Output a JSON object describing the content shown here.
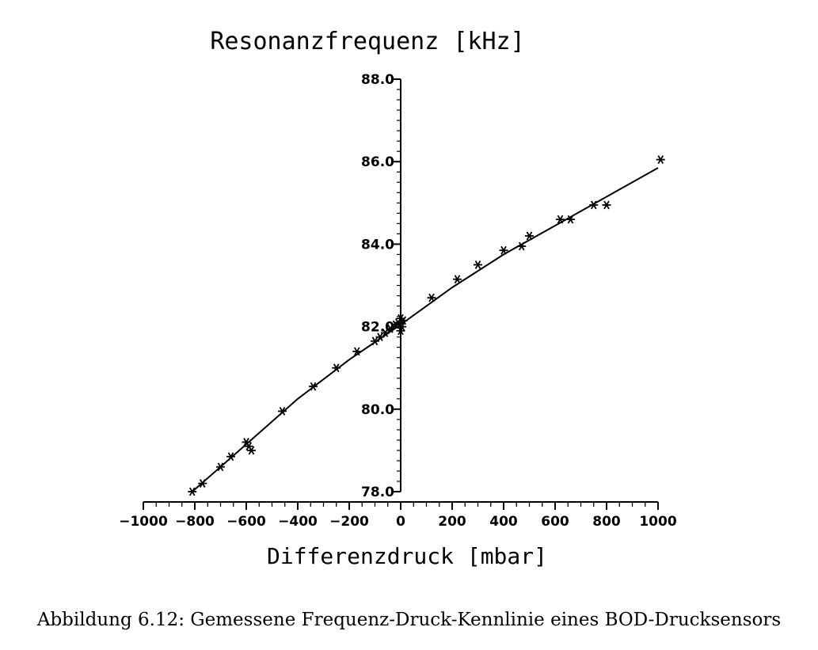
{
  "caption": "Abbildung 6.12: Gemessene Frequenz-Druck-Kennlinie eines BOD-Drucksensors",
  "chart_data": {
    "type": "scatter",
    "title": "",
    "xlabel": "Differenzdruck [mbar]",
    "ylabel": "Resonanzfrequenz [kHz]",
    "xlim": [
      -1000,
      1000
    ],
    "ylim": [
      78.0,
      88.0
    ],
    "x_ticks": [
      -1000,
      -800,
      -600,
      -400,
      -200,
      0,
      200,
      400,
      600,
      800,
      1000
    ],
    "x_tick_labels": [
      "−1000",
      "−800",
      "−600",
      "−400",
      "−200",
      "0",
      "200",
      "400",
      "600",
      "800",
      "1000"
    ],
    "y_ticks": [
      78.0,
      80.0,
      82.0,
      84.0,
      86.0,
      88.0
    ],
    "y_tick_labels": [
      "78.0",
      "80.0",
      "82.0",
      "84.0",
      "86.0",
      "88.0"
    ],
    "x_axis_position": "bottom",
    "y_axis_position": "x=0",
    "grid": false,
    "legend": "none",
    "color": "#000000",
    "series": [
      {
        "type": "scatter",
        "marker": "asterisk",
        "x": [
          -810,
          -770,
          -700,
          -660,
          -600,
          -590,
          -580,
          -460,
          -340,
          -250,
          -170,
          -100,
          -80,
          -60,
          -40,
          -20,
          -10,
          0,
          0,
          5,
          10,
          120,
          220,
          300,
          400,
          470,
          500,
          620,
          660,
          750,
          800,
          1010
        ],
        "y": [
          78.0,
          78.2,
          78.6,
          78.85,
          79.2,
          79.1,
          79.0,
          79.95,
          80.55,
          81.0,
          81.4,
          81.65,
          81.75,
          81.85,
          81.95,
          82.05,
          82.1,
          81.9,
          82.2,
          82.0,
          82.15,
          82.7,
          83.15,
          83.5,
          83.85,
          83.95,
          84.2,
          84.6,
          84.6,
          84.95,
          84.95,
          86.05
        ]
      },
      {
        "type": "line",
        "x": [
          -810,
          -600,
          -400,
          -200,
          0,
          200,
          400,
          600,
          800,
          1000
        ],
        "y": [
          78.0,
          79.15,
          80.25,
          81.2,
          82.05,
          82.95,
          83.75,
          84.45,
          85.15,
          85.85
        ]
      }
    ]
  }
}
